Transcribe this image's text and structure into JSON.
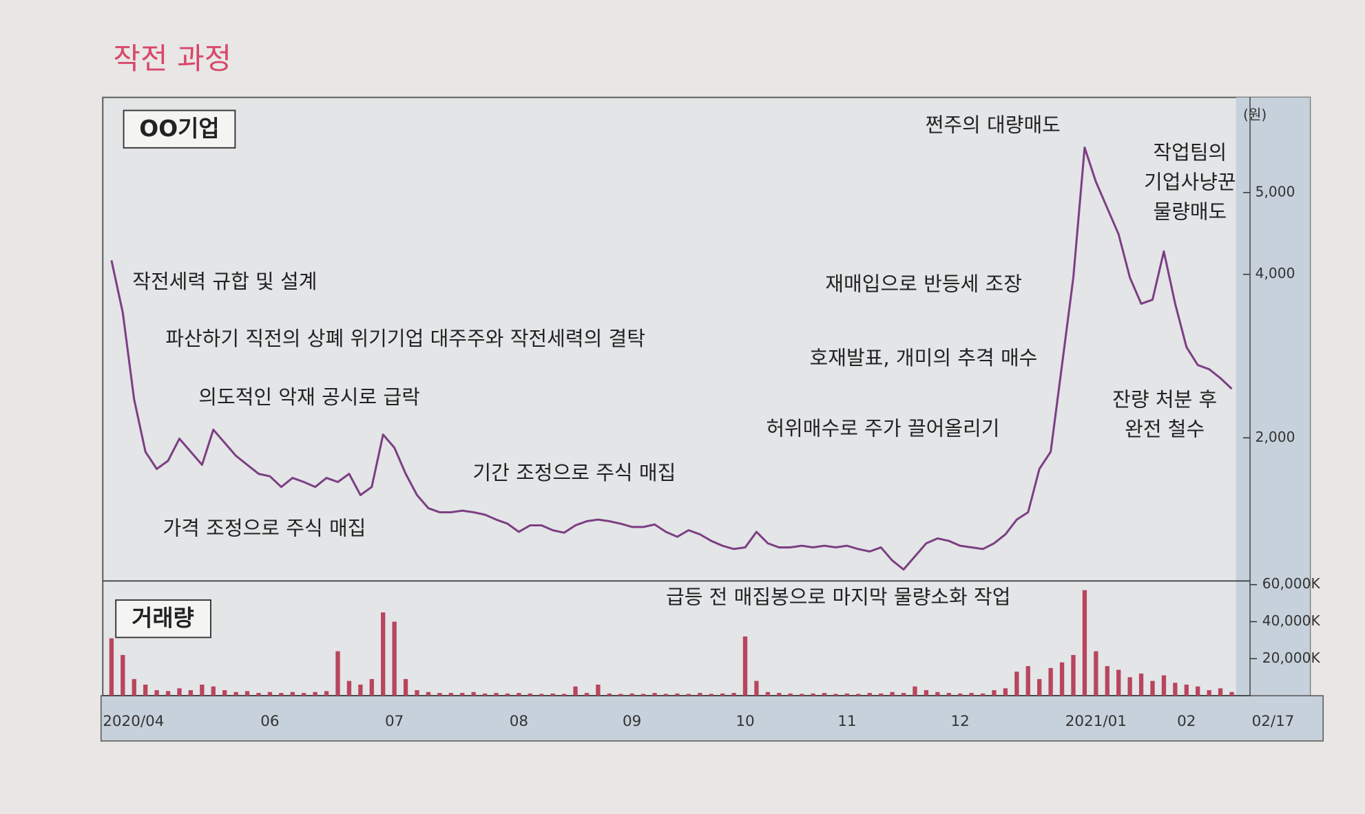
{
  "title": "작전 과정",
  "chart_data": {
    "type": "line",
    "y_unit": "(원)",
    "categories": [
      "2020/04",
      null,
      null,
      null,
      null,
      null,
      null,
      null,
      null,
      null,
      null,
      null,
      null,
      null,
      "06",
      null,
      null,
      null,
      null,
      null,
      null,
      null,
      null,
      null,
      null,
      "07",
      null,
      null,
      null,
      null,
      null,
      null,
      null,
      null,
      null,
      null,
      "08",
      null,
      null,
      null,
      null,
      null,
      null,
      null,
      null,
      null,
      "09",
      null,
      null,
      null,
      null,
      null,
      null,
      null,
      null,
      null,
      "10",
      null,
      null,
      null,
      null,
      null,
      null,
      null,
      null,
      "11",
      null,
      null,
      null,
      null,
      null,
      null,
      null,
      null,
      null,
      "12",
      null,
      null,
      null,
      null,
      null,
      null,
      null,
      null,
      null,
      null,
      null,
      "2021/01",
      null,
      null,
      null,
      null,
      null,
      null,
      null,
      "02",
      null,
      null,
      null,
      "02/17"
    ],
    "series": [
      {
        "name": "OO기업",
        "color": "#7c3f82",
        "values": [
          4170,
          3530,
          2470,
          1830,
          1620,
          1720,
          1990,
          1830,
          1670,
          2100,
          1940,
          1780,
          1670,
          1560,
          1530,
          1400,
          1510,
          1460,
          1400,
          1510,
          1460,
          1560,
          1300,
          1400,
          2040,
          1880,
          1560,
          1300,
          1140,
          1090,
          1090,
          1110,
          1090,
          1060,
          1000,
          950,
          850,
          930,
          930,
          870,
          840,
          930,
          980,
          1000,
          980,
          950,
          910,
          910,
          940,
          850,
          790,
          870,
          820,
          740,
          680,
          640,
          660,
          850,
          710,
          660,
          660,
          680,
          660,
          680,
          660,
          680,
          640,
          610,
          660,
          500,
          390,
          550,
          710,
          770,
          740,
          680,
          660,
          640,
          710,
          820,
          1000,
          1090,
          1620,
          1830,
          2890,
          3960,
          5550,
          5130,
          4810,
          4490,
          3960,
          3640,
          3690,
          4280,
          3640,
          3110,
          2890,
          2840,
          2730,
          2600
        ]
      },
      {
        "name": "거래량",
        "type": "bar",
        "axis": "y2",
        "color": "#b8455e",
        "values": [
          31000,
          22000,
          9000,
          6000,
          3000,
          2500,
          4000,
          3000,
          6000,
          5000,
          3000,
          2000,
          2500,
          1500,
          2000,
          1500,
          2000,
          1500,
          2000,
          2500,
          24000,
          8000,
          6000,
          9000,
          45000,
          40000,
          9000,
          3000,
          2000,
          1500,
          1500,
          1500,
          2000,
          1200,
          1500,
          1200,
          1500,
          1200,
          1000,
          1200,
          1000,
          5000,
          1500,
          6000,
          1200,
          1000,
          1200,
          1000,
          1500,
          1000,
          1200,
          1000,
          1500,
          1000,
          1200,
          1500,
          32000,
          8000,
          2000,
          1500,
          1200,
          1000,
          1200,
          1500,
          1000,
          1200,
          1000,
          1500,
          1200,
          2000,
          1500,
          5000,
          3000,
          2000,
          1500,
          1200,
          1500,
          1200,
          3000,
          4000,
          13000,
          16000,
          9000,
          15000,
          18000,
          22000,
          57000,
          24000,
          16000,
          14000,
          10000,
          12000,
          8000,
          11000,
          7000,
          6000,
          5000,
          3000,
          4000,
          2000
        ]
      }
    ],
    "ylim": [
      250,
      6100
    ],
    "yticks": [
      {
        "value": 2000,
        "label": "2,000"
      },
      {
        "value": 4000,
        "label": "4,000"
      },
      {
        "value": 5000,
        "label": "5,000"
      }
    ],
    "y2lim": [
      0,
      62000
    ],
    "y2ticks": [
      {
        "value": 20000,
        "label": "20,000K"
      },
      {
        "value": 40000,
        "label": "40,000K"
      },
      {
        "value": 60000,
        "label": "60,000K"
      }
    ],
    "grid": false,
    "annotations": [
      "작전세력 규합 및 설계",
      "파산하기 직전의 상폐 위기기업 대주주와 작전세력의 결탁",
      "의도적인 악재 공시로 급락",
      "가격 조정으로 주식 매집",
      "기간 조정으로 주식 매집",
      "급등 전 매집봉으로 마지막 물량소화 작업",
      "허위매수로 주가 끌어올리기",
      "호재발표, 개미의 추격 매수",
      "재매입으로 반등세 조장",
      "쩐주의 대량매도",
      [
        "작업팀의",
        "기업사냥꾼",
        "물량매도"
      ],
      [
        "잔량 처분 후",
        "완전 철수"
      ]
    ]
  }
}
